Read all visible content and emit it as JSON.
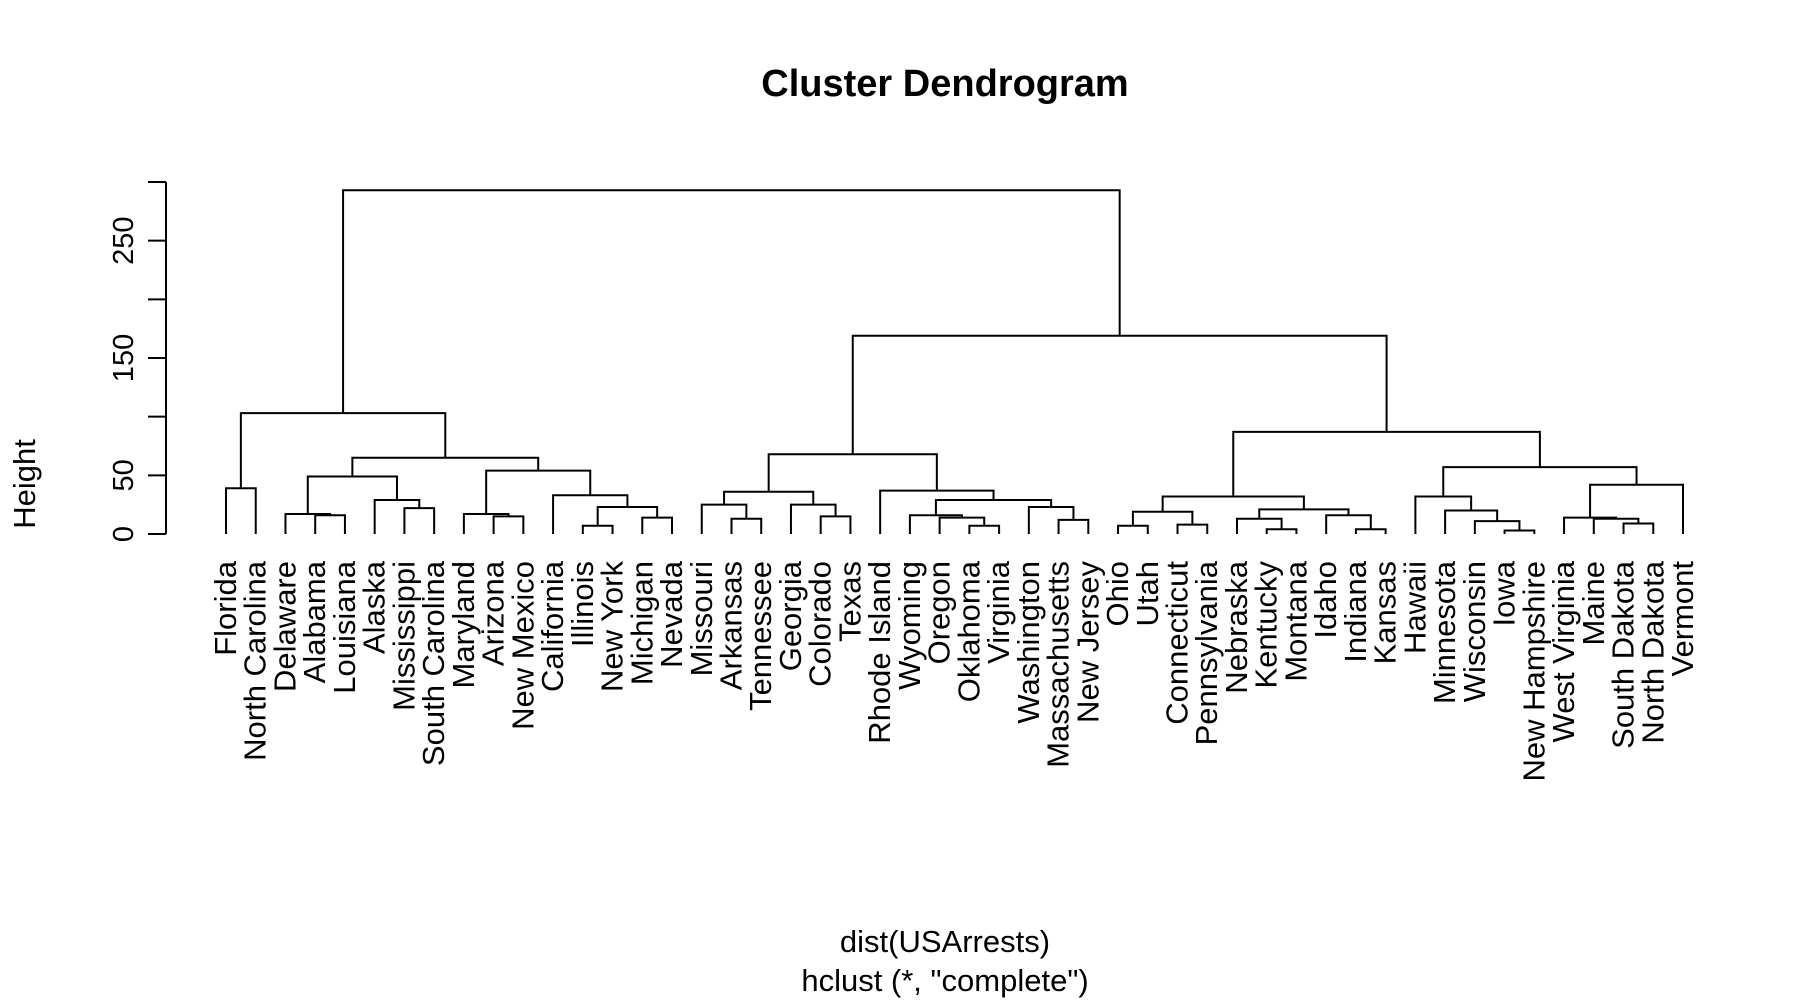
{
  "chart_data": {
    "type": "dendrogram",
    "title": "Cluster Dendrogram",
    "xlabel": "dist(USArrests)",
    "sublabel": "hclust (*, \"complete\")",
    "ylabel": "Height",
    "ylim": [
      0,
      300
    ],
    "yticks": [
      0,
      50,
      100,
      150,
      200,
      250,
      300
    ],
    "ytick_labels": [
      "0",
      "50",
      "",
      "150",
      "",
      "250",
      ""
    ],
    "labels": [
      "Florida",
      "North Carolina",
      "Delaware",
      "Alabama",
      "Louisiana",
      "Alaska",
      "Mississippi",
      "South Carolina",
      "Maryland",
      "Arizona",
      "New Mexico",
      "California",
      "Illinois",
      "New York",
      "Michigan",
      "Nevada",
      "Missouri",
      "Arkansas",
      "Tennessee",
      "Georgia",
      "Colorado",
      "Texas",
      "Rhode Island",
      "Wyoming",
      "Oregon",
      "Oklahoma",
      "Virginia",
      "Washington",
      "Massachusetts",
      "New Jersey",
      "Ohio",
      "Utah",
      "Connecticut",
      "Pennsylvania",
      "Nebraska",
      "Kentucky",
      "Montana",
      "Idaho",
      "Indiana",
      "Kansas",
      "Hawaii",
      "Minnesota",
      "Wisconsin",
      "Iowa",
      "New Hampshire",
      "West Virginia",
      "Maine",
      "South Dakota",
      "North Dakota",
      "Vermont"
    ],
    "merges": [
      {
        "left": "Florida",
        "right": "North Carolina",
        "height": 39
      },
      {
        "left": "Alabama",
        "right": "Louisiana",
        "height": 16
      },
      {
        "left": "Delaware",
        "right": 2,
        "height": 17
      },
      {
        "left": "Mississippi",
        "right": "South Carolina",
        "height": 22
      },
      {
        "left": "Alaska",
        "right": 4,
        "height": 29
      },
      {
        "left": 3,
        "right": 5,
        "height": 49
      },
      {
        "left": "Arizona",
        "right": "New Mexico",
        "height": 15
      },
      {
        "left": "Maryland",
        "right": 7,
        "height": 17
      },
      {
        "left": "Illinois",
        "right": "New York",
        "height": 7
      },
      {
        "left": "Michigan",
        "right": "Nevada",
        "height": 14
      },
      {
        "left": 9,
        "right": 10,
        "height": 23
      },
      {
        "left": "California",
        "right": 11,
        "height": 33
      },
      {
        "left": 8,
        "right": 12,
        "height": 54
      },
      {
        "left": 6,
        "right": 13,
        "height": 65
      },
      {
        "left": 1,
        "right": 14,
        "height": 103
      },
      {
        "left": "Arkansas",
        "right": "Tennessee",
        "height": 13
      },
      {
        "left": "Missouri",
        "right": 16,
        "height": 25
      },
      {
        "left": "Colorado",
        "right": "Texas",
        "height": 15
      },
      {
        "left": "Georgia",
        "right": 18,
        "height": 25
      },
      {
        "left": 17,
        "right": 19,
        "height": 36
      },
      {
        "left": "Oklahoma",
        "right": "Virginia",
        "height": 7
      },
      {
        "left": "Oregon",
        "right": 21,
        "height": 14
      },
      {
        "left": "Wyoming",
        "right": 22,
        "height": 16
      },
      {
        "left": "Massachusetts",
        "right": "New Jersey",
        "height": 12
      },
      {
        "left": "Washington",
        "right": 24,
        "height": 23
      },
      {
        "left": 23,
        "right": 25,
        "height": 29
      },
      {
        "left": "Rhode Island",
        "right": 26,
        "height": 37
      },
      {
        "left": 20,
        "right": 27,
        "height": 68
      },
      {
        "left": "Ohio",
        "right": "Utah",
        "height": 7
      },
      {
        "left": "Connecticut",
        "right": "Pennsylvania",
        "height": 8
      },
      {
        "left": 29,
        "right": 30,
        "height": 19
      },
      {
        "left": "Kentucky",
        "right": "Montana",
        "height": 4
      },
      {
        "left": "Nebraska",
        "right": 32,
        "height": 13
      },
      {
        "left": "Indiana",
        "right": "Kansas",
        "height": 4
      },
      {
        "left": "Idaho",
        "right": 34,
        "height": 16
      },
      {
        "left": 33,
        "right": 35,
        "height": 21
      },
      {
        "left": 31,
        "right": 36,
        "height": 32
      },
      {
        "left": "Iowa",
        "right": "New Hampshire",
        "height": 3
      },
      {
        "left": "Wisconsin",
        "right": 38,
        "height": 11
      },
      {
        "left": "Minnesota",
        "right": 39,
        "height": 20
      },
      {
        "left": "Hawaii",
        "right": 40,
        "height": 32
      },
      {
        "left": "South Dakota",
        "right": "North Dakota",
        "height": 9
      },
      {
        "left": "Maine",
        "right": 42,
        "height": 13
      },
      {
        "left": "West Virginia",
        "right": 43,
        "height": 14
      },
      {
        "left": 44,
        "right": "Vermont",
        "height": 42
      },
      {
        "left": 41,
        "right": 45,
        "height": 57
      },
      {
        "left": 37,
        "right": 46,
        "height": 87
      },
      {
        "left": 28,
        "right": 47,
        "height": 169
      },
      {
        "left": 15,
        "right": 48,
        "height": 293
      }
    ]
  }
}
